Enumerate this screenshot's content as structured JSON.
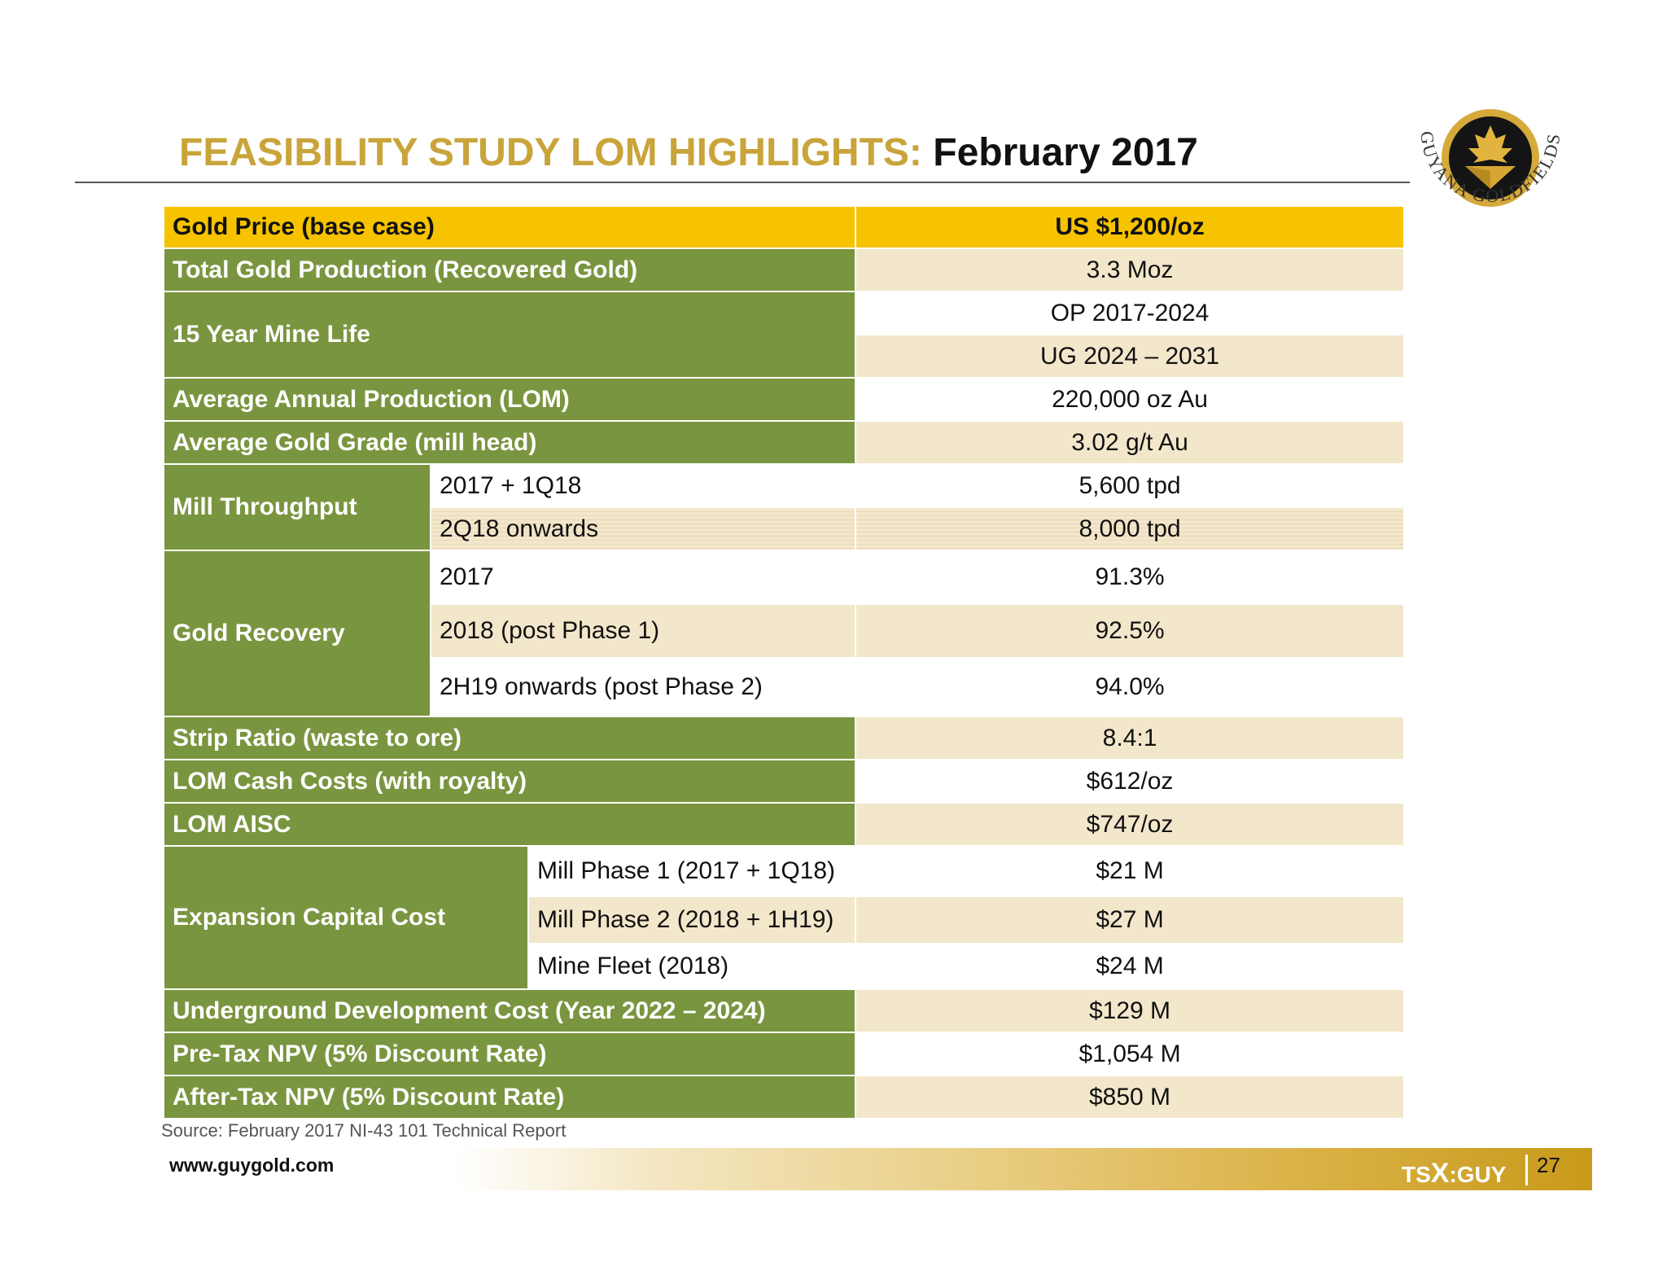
{
  "title": {
    "highlight": "FEASIBILITY STUDY LOM HIGHLIGHTS:",
    "date": "February 2017"
  },
  "logo": {
    "text": "GUYANA GOLDFIELDS INC.",
    "icon": "maple-leaf-gold-icon"
  },
  "table": {
    "header": {
      "label": "Gold Price (base case)",
      "value": "US $1,200/oz"
    },
    "total_production": {
      "label": "Total Gold Production (Recovered Gold)",
      "value": "3.3 Moz"
    },
    "mine_life": {
      "label": "15 Year Mine Life",
      "values": [
        "OP 2017-2024",
        "UG 2024 – 2031"
      ]
    },
    "annual_production": {
      "label": "Average Annual Production (LOM)",
      "value": "220,000 oz Au"
    },
    "gold_grade": {
      "label": "Average Gold Grade (mill head)",
      "value": "3.02 g/t Au"
    },
    "mill_throughput": {
      "label": "Mill Throughput",
      "rows": [
        {
          "period": "2017 + 1Q18",
          "value": "5,600 tpd"
        },
        {
          "period": "2Q18 onwards",
          "value": "8,000 tpd"
        }
      ]
    },
    "gold_recovery": {
      "label": "Gold Recovery",
      "rows": [
        {
          "period": "2017",
          "value": "91.3%"
        },
        {
          "period": "2018 (post Phase 1)",
          "value": "92.5%"
        },
        {
          "period": "2H19 onwards (post Phase 2)",
          "value": "94.0%"
        }
      ]
    },
    "strip_ratio": {
      "label": "Strip Ratio (waste to ore)",
      "value": "8.4:1"
    },
    "cash_costs": {
      "label": "LOM Cash Costs (with royalty)",
      "value": "$612/oz"
    },
    "aisc": {
      "label": "LOM AISC",
      "value": "$747/oz"
    },
    "expansion_capital": {
      "label": "Expansion Capital Cost",
      "rows": [
        {
          "item": "Mill Phase 1 (2017 + 1Q18)",
          "value": "$21 M"
        },
        {
          "item": "Mill Phase 2 (2018 + 1H19)",
          "value": "$27 M"
        },
        {
          "item": "Mine Fleet (2018)",
          "value": "$24 M"
        }
      ]
    },
    "underground_dev": {
      "label": "Underground Development Cost (Year 2022 – 2024)",
      "value": "$129 M"
    },
    "pretax_npv": {
      "label": "Pre-Tax NPV (5% Discount Rate)",
      "value": "$1,054 M"
    },
    "aftertax_npv": {
      "label": "After-Tax NPV (5% Discount Rate)",
      "value": "$850 M"
    }
  },
  "source": "Source: February 2017 NI-43 101 Technical Report",
  "footer": {
    "website": "www.guygold.com",
    "ticker_prefix": "TS",
    "ticker_x": "X",
    "ticker_suffix": ":GUY",
    "page_number": "27"
  }
}
